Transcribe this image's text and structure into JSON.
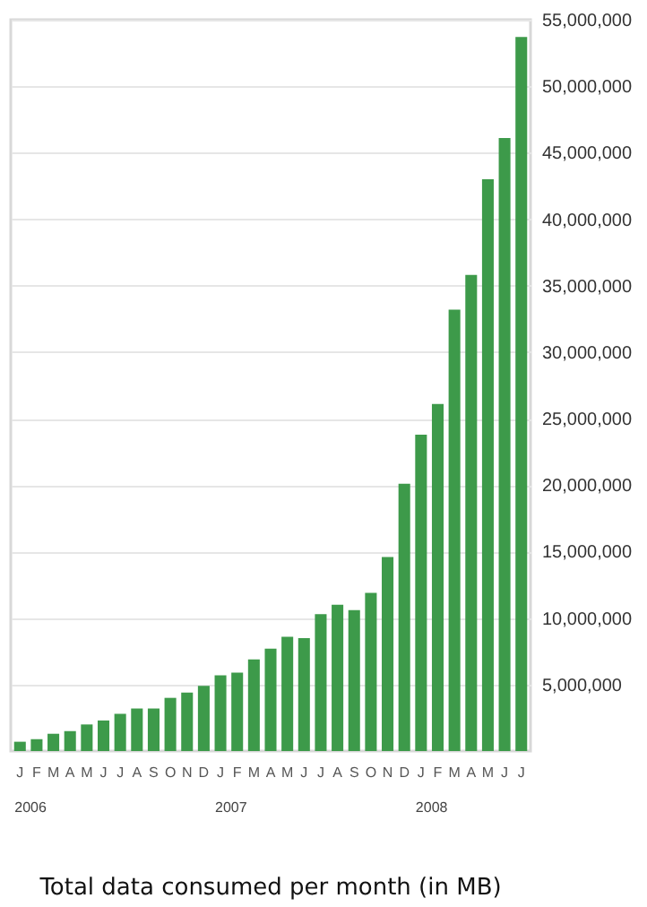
{
  "chart_data": {
    "type": "bar",
    "title": "Total data consumed per month (in MB)",
    "categories": [
      "J",
      "F",
      "M",
      "A",
      "M",
      "J",
      "J",
      "A",
      "S",
      "O",
      "N",
      "D",
      "J",
      "F",
      "M",
      "A",
      "M",
      "J",
      "J",
      "A",
      "S",
      "O",
      "N",
      "D",
      "J",
      "F",
      "M",
      "A",
      "M",
      "J",
      "J"
    ],
    "values": [
      700000,
      900000,
      1300000,
      1500000,
      2000000,
      2300000,
      2800000,
      3200000,
      3200000,
      4000000,
      4400000,
      4900000,
      5700000,
      5900000,
      6900000,
      7700000,
      8600000,
      8500000,
      10300000,
      11000000,
      10600000,
      11900000,
      14600000,
      20100000,
      23800000,
      26100000,
      33200000,
      35800000,
      43000000,
      46100000,
      53700000
    ],
    "color": "#3d9a4a",
    "ylim": [
      0,
      55000000
    ],
    "yticks": [
      {
        "value": 5000000,
        "label": "5,000,000"
      },
      {
        "value": 10000000,
        "label": "10,000,000"
      },
      {
        "value": 15000000,
        "label": "15,000,000"
      },
      {
        "value": 20000000,
        "label": "20,000,000"
      },
      {
        "value": 25000000,
        "label": "25,000,000"
      },
      {
        "value": 30000000,
        "label": "30,000,000"
      },
      {
        "value": 35000000,
        "label": "35,000,000"
      },
      {
        "value": 40000000,
        "label": "40,000,000"
      },
      {
        "value": 45000000,
        "label": "45,000,000"
      },
      {
        "value": 50000000,
        "label": "50,000,000"
      },
      {
        "value": 55000000,
        "label": "55,000,000"
      }
    ],
    "grid": "y",
    "annotations": [
      "2006",
      "2007",
      "2008"
    ]
  }
}
